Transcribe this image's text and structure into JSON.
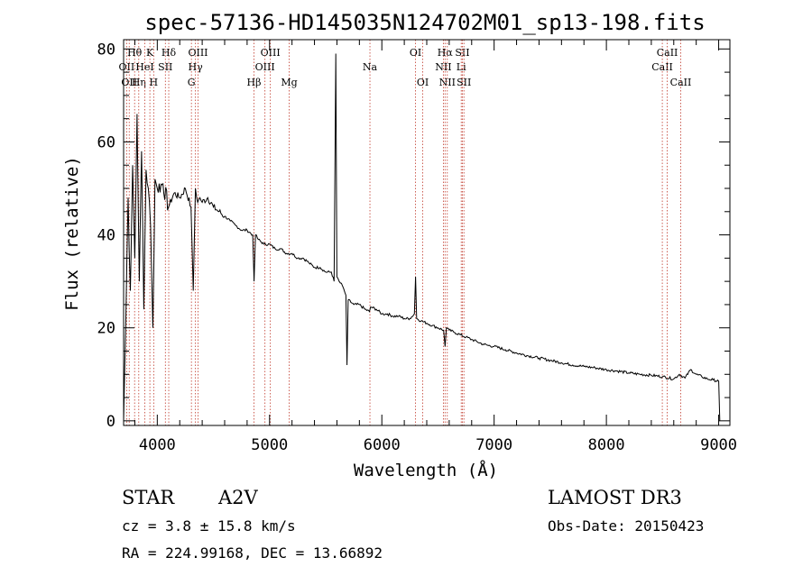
{
  "chart_data": {
    "type": "line",
    "title": "spec-57136-HD145035N124702M01_sp13-198.fits",
    "xlabel": "Wavelength (Å)",
    "ylabel": "Flux (relative)",
    "xlim": [
      3700,
      9100
    ],
    "ylim": [
      -1,
      82
    ],
    "xticks": [
      4000,
      5000,
      6000,
      7000,
      8000,
      9000
    ],
    "yticks": [
      0,
      20,
      40,
      60,
      80
    ],
    "line_color": "#000000",
    "marker_color": "#c0392b",
    "series": [
      {
        "name": "spectrum",
        "x": [
          3700,
          3720,
          3740,
          3760,
          3780,
          3800,
          3820,
          3840,
          3860,
          3880,
          3900,
          3920,
          3940,
          3960,
          3980,
          4000,
          4050,
          4100,
          4150,
          4200,
          4250,
          4300,
          4320,
          4340,
          4360,
          4380,
          4400,
          4450,
          4500,
          4550,
          4600,
          4650,
          4700,
          4750,
          4800,
          4850,
          4862,
          4875,
          4900,
          4950,
          5000,
          5050,
          5100,
          5150,
          5200,
          5250,
          5300,
          5350,
          5400,
          5450,
          5500,
          5550,
          5575,
          5590,
          5600,
          5620,
          5650,
          5680,
          5690,
          5700,
          5750,
          5800,
          5850,
          5890,
          5900,
          5950,
          6000,
          6050,
          6100,
          6150,
          6200,
          6250,
          6290,
          6300,
          6310,
          6350,
          6400,
          6450,
          6500,
          6550,
          6563,
          6575,
          6600,
          6650,
          6700,
          6750,
          6800,
          6850,
          6900,
          6950,
          7000,
          7100,
          7200,
          7300,
          7400,
          7500,
          7600,
          7700,
          7800,
          7900,
          8000,
          8100,
          8200,
          8300,
          8400,
          8500,
          8600,
          8650,
          8700,
          8750,
          8800,
          8850,
          8900,
          8950,
          9000,
          9010
        ],
        "values": [
          0,
          22,
          48,
          28,
          55,
          35,
          66,
          30,
          58,
          24,
          54,
          50,
          42,
          20,
          52,
          50,
          51,
          46,
          49,
          48,
          50,
          46,
          28,
          50,
          47,
          48,
          47,
          48,
          46,
          45,
          44,
          43,
          42,
          41,
          41,
          40,
          30,
          40,
          39,
          38,
          38,
          37,
          37,
          36,
          36,
          35,
          35,
          34,
          33,
          33,
          32,
          32,
          30,
          79,
          31,
          30,
          29,
          27,
          12,
          26,
          25,
          25,
          24,
          23.5,
          24.5,
          24,
          23,
          23,
          22.5,
          22.5,
          22,
          22,
          23,
          31,
          22,
          21.5,
          21,
          20.5,
          20,
          19.5,
          16,
          20,
          19.5,
          19,
          18.5,
          18,
          17.5,
          17,
          16.5,
          16.2,
          16,
          15.3,
          14.6,
          14,
          13.5,
          13,
          12.5,
          12,
          11.7,
          11.4,
          11,
          10.7,
          10.3,
          10,
          9.8,
          9.5,
          9,
          10,
          9.2,
          11,
          10,
          9.5,
          9,
          8.8,
          8.5,
          0
        ]
      }
    ],
    "lines": [
      {
        "wl": 3727,
        "label": "OII",
        "row": 1
      },
      {
        "wl": 3750,
        "label": "OII",
        "row": 2
      },
      {
        "wl": 3798,
        "label": "Hθ",
        "row": 0
      },
      {
        "wl": 3835,
        "label": "Hη",
        "row": 2
      },
      {
        "wl": 3889,
        "label": "HeI",
        "row": 1
      },
      {
        "wl": 3934,
        "label": "K",
        "row": 0
      },
      {
        "wl": 3968,
        "label": "H",
        "row": 2
      },
      {
        "wl": 4072,
        "label": "SII",
        "row": 1
      },
      {
        "wl": 4102,
        "label": "Hδ",
        "row": 0
      },
      {
        "wl": 4304,
        "label": "G",
        "row": 2
      },
      {
        "wl": 4340,
        "label": "Hγ",
        "row": 1
      },
      {
        "wl": 4363,
        "label": "OIII",
        "row": 0
      },
      {
        "wl": 4861,
        "label": "Hβ",
        "row": 2
      },
      {
        "wl": 4959,
        "label": "OIII",
        "row": 1
      },
      {
        "wl": 5007,
        "label": "OIII",
        "row": 0
      },
      {
        "wl": 5175,
        "label": "Mg",
        "row": 2
      },
      {
        "wl": 5894,
        "label": "Na",
        "row": 1
      },
      {
        "wl": 6300,
        "label": "OI",
        "row": 0
      },
      {
        "wl": 6364,
        "label": "OI",
        "row": 2
      },
      {
        "wl": 6548,
        "label": "NII",
        "row": 1
      },
      {
        "wl": 6563,
        "label": "Hα",
        "row": 0
      },
      {
        "wl": 6583,
        "label": "NII",
        "row": 2
      },
      {
        "wl": 6707,
        "label": "Li",
        "row": 1
      },
      {
        "wl": 6717,
        "label": "SII",
        "row": 0
      },
      {
        "wl": 6731,
        "label": "SII",
        "row": 2
      },
      {
        "wl": 8498,
        "label": "CaII",
        "row": 1
      },
      {
        "wl": 8542,
        "label": "CaII",
        "row": 0
      },
      {
        "wl": 8662,
        "label": "CaII",
        "row": 2
      }
    ]
  },
  "info": {
    "object_class": "STAR",
    "subclass": "A2V",
    "survey": "LAMOST DR3",
    "redshift": "cz = 3.8 ± 15.8 km/s",
    "obs_date": "Obs-Date: 20150423",
    "coords": "RA = 224.99168, DEC =  13.66892"
  }
}
